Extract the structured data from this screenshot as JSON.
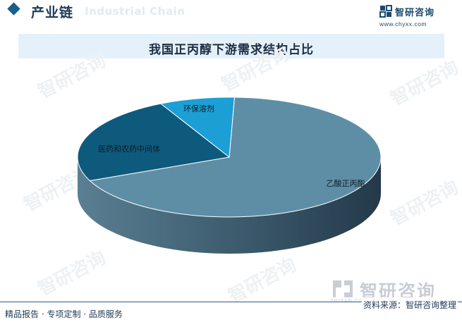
{
  "header": {
    "section_title": "产业链",
    "section_watermark": "Industrial Chain",
    "brand_name": "智研咨询",
    "brand_url": "www.chyxx.com"
  },
  "chart_data": {
    "type": "pie",
    "title": "我国正丙醇下游需求结构占比",
    "slices": [
      {
        "label": "乙酸正丙酯",
        "value": 68,
        "color": "#5e8ea6"
      },
      {
        "label": "医药和农药中间体",
        "value": 24,
        "color": "#0d5a7c"
      },
      {
        "label": "环保溶剂",
        "value": 8,
        "color": "#1c9fd4"
      }
    ],
    "legend": "none",
    "style": "3d"
  },
  "watermark": {
    "text": "智研咨询",
    "sub": "ZHIYAN CONSULTING"
  },
  "footer": {
    "left": "精品报告 · 专项定制 · 品质服务",
    "source": "资料来源：智研咨询整理"
  }
}
